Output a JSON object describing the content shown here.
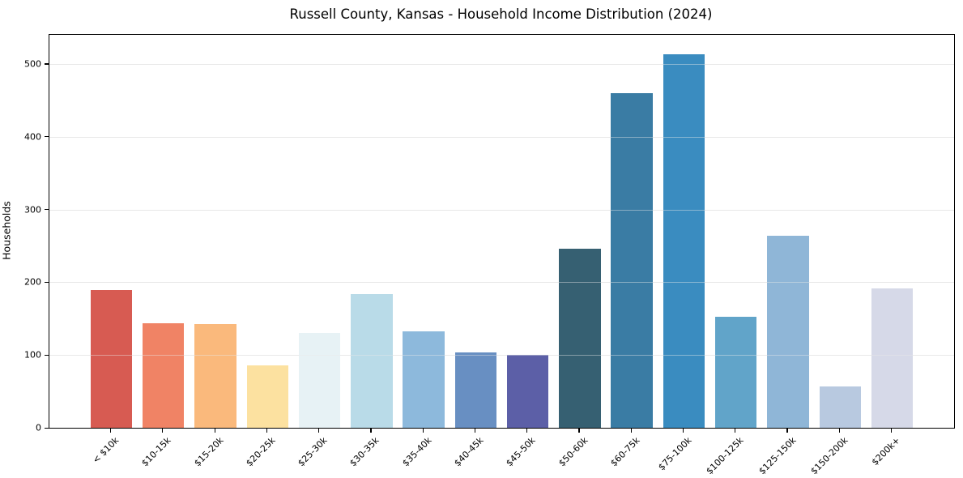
{
  "figure": {
    "title": "Russell County, Kansas - Household Income Distribution (2024)"
  },
  "chart_data": {
    "type": "bar",
    "title": "Russell County, Kansas - Household Income Distribution (2024)",
    "xlabel": "",
    "ylabel": "Households",
    "categories": [
      "< $10k",
      "$10-15k",
      "$15-20k",
      "$20-25k",
      "$25-30k",
      "$30-35k",
      "$35-40k",
      "$40-45k",
      "$45-50k",
      "$50-60k",
      "$60-75k",
      "$75-100k",
      "$100-125k",
      "$125-150k",
      "$150-200k",
      "$200k+"
    ],
    "values": [
      189,
      144,
      143,
      86,
      130,
      184,
      132,
      104,
      100,
      246,
      460,
      513,
      153,
      264,
      57,
      192
    ],
    "bar_colors": [
      "#d75b52",
      "#f08365",
      "#fab97c",
      "#fce1a0",
      "#e7f2f5",
      "#b9dbe8",
      "#8db9dc",
      "#688fc2",
      "#5c5fa7",
      "#366072",
      "#3a7ca4",
      "#3a8cc0",
      "#61a4c9",
      "#8fb6d7",
      "#b8c9e0",
      "#d6d9e8"
    ],
    "yticks": [
      0,
      100,
      200,
      300,
      400,
      500
    ],
    "ylim": [
      0,
      540
    ],
    "grid": "horizontal",
    "legend": "none",
    "x_tick_rotation": 45,
    "background_color": "#ffffff",
    "grid_color": "#e8e8e8",
    "spine_color": "#000000",
    "text_color": "#000000"
  }
}
